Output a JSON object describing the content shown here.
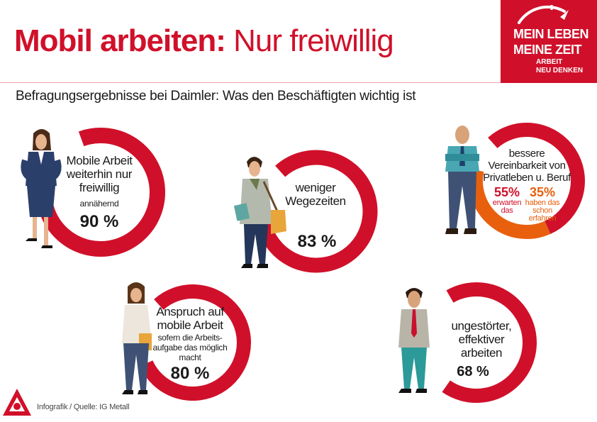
{
  "header": {
    "title_bold": "Mobil arbeiten:",
    "title_rest": "Nur freiwillig",
    "subtitle": "Befragungsergebnisse bei Daimler: Was den Beschäftigten wichtig ist"
  },
  "logo": {
    "line1": "MEIN LEBEN",
    "line2": "MEINE ZEIT",
    "line3": "ARBEIT",
    "line4": "NEU DENKEN"
  },
  "colors": {
    "brand_red": "#d0102a",
    "orange": "#e8600e",
    "ring_track": "#ffffff"
  },
  "chart_data": {
    "type": "pie",
    "unit": "%",
    "items": [
      {
        "key": "mobile",
        "label_lines": [
          "Mobile Arbeit",
          "weiterhin  nur",
          "freiwillig"
        ],
        "sub_lines": [
          "annähernd"
        ],
        "value": 90,
        "value_text": "90 %"
      },
      {
        "key": "wege",
        "label_lines": [
          "weniger",
          "Wegezeiten"
        ],
        "sub_lines": [],
        "value": 83,
        "value_text": "83 %"
      },
      {
        "key": "vereinbarkeit",
        "label_lines": [
          "bessere",
          "Vereinbarkeit von",
          "Privatleben u. Beruf"
        ],
        "sub_lines": [],
        "value": 55,
        "value_text": "55%",
        "value_sub_lines": [
          "erwarten",
          "das"
        ],
        "second_value": 35,
        "second_value_text": "35%",
        "second_sub_lines": [
          "haben das",
          "schon",
          "erfahren"
        ]
      },
      {
        "key": "anspruch",
        "label_lines": [
          "Anspruch auf",
          "mobile Arbeit"
        ],
        "sub_lines": [
          "sofern die Arbeits-",
          "aufgabe das möglich",
          "macht"
        ],
        "value": 80,
        "value_text": "80 %"
      },
      {
        "key": "ungestoert",
        "label_lines": [
          "ungestörter,",
          "effektiver",
          "arbeiten"
        ],
        "sub_lines": [],
        "value": 68,
        "value_text": "68 %"
      }
    ]
  },
  "footer": {
    "source": "Infografik / Quelle: IG Metall"
  }
}
